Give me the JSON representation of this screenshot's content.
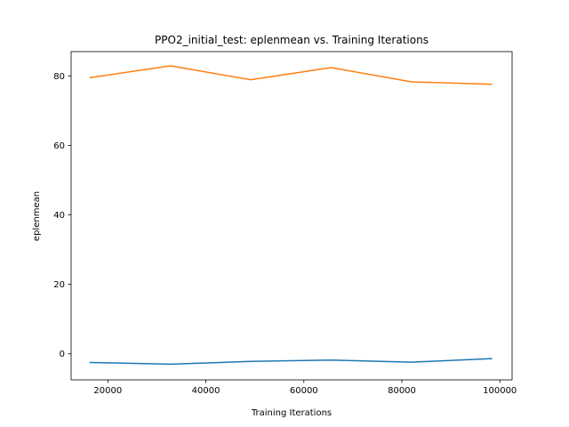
{
  "chart_data": {
    "type": "line",
    "title": "PPO2_initial_test: eplenmean vs. Training Iterations",
    "xlabel": "Training Iterations",
    "ylabel": "eplenmean",
    "xlim": [
      12500,
      102500
    ],
    "ylim": [
      -7.5,
      87
    ],
    "xticks": [
      20000,
      40000,
      60000,
      80000,
      100000
    ],
    "yticks": [
      0,
      20,
      40,
      60,
      80
    ],
    "grid": false,
    "x": [
      16384,
      32768,
      49152,
      65536,
      81920,
      98304
    ],
    "series": [
      {
        "color": "#1f77b4",
        "values": [
          -2.5,
          -3.0,
          -2.2,
          -1.8,
          -2.4,
          -1.4
        ]
      },
      {
        "color": "#ff7f0e",
        "values": [
          79.5,
          82.9,
          78.9,
          82.4,
          78.3,
          77.6
        ]
      }
    ]
  }
}
